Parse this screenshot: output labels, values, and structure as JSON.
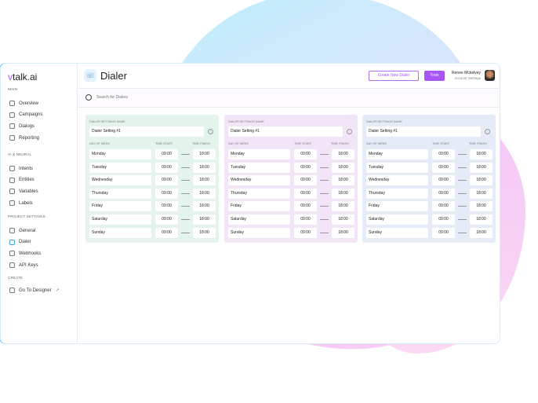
{
  "app": {
    "logo": "talk.ai",
    "logo_accent": "v"
  },
  "sidebar": {
    "sections": [
      {
        "title": "MAIN",
        "items": [
          {
            "label": "Overview",
            "icon": "chart-pie-icon"
          },
          {
            "label": "Campaigns",
            "icon": "folder-icon"
          },
          {
            "label": "Dialogs",
            "icon": "chat-icon"
          },
          {
            "label": "Reporting",
            "icon": "report-icon"
          }
        ]
      },
      {
        "title": "AI & NEURAL",
        "items": [
          {
            "label": "Intents",
            "icon": "intent-icon"
          },
          {
            "label": "Entities",
            "icon": "entity-icon"
          },
          {
            "label": "Variables",
            "icon": "grid-icon"
          },
          {
            "label": "Labels",
            "icon": "label-icon"
          }
        ]
      },
      {
        "title": "PROJECT SETTINGS",
        "items": [
          {
            "label": "General",
            "icon": "sliders-icon"
          },
          {
            "label": "Dialer",
            "icon": "phone-icon",
            "active": true
          },
          {
            "label": "Webhooks",
            "icon": "webhook-icon"
          },
          {
            "label": "API Keys",
            "icon": "key-icon"
          }
        ]
      },
      {
        "title": "CREATE",
        "items": [
          {
            "label": "Go To Designer",
            "icon": "share-icon",
            "external": "↗"
          }
        ]
      }
    ]
  },
  "header": {
    "title": "Dialer",
    "create_label": "Create New Dialer",
    "train_label": "Train",
    "user_name": "Renee Mckelvey",
    "user_sub": "Account Settings"
  },
  "search": {
    "placeholder": "Search for Dialers"
  },
  "colors": {
    "accent": "#a855f7",
    "card_bgs": [
      "#e4f4ec",
      "#f3e5f8",
      "#e6ebf8"
    ]
  },
  "cards": [
    {
      "label": "DIALER SETTINGS NAME",
      "name": "Dialer Setting #1",
      "col_day": "DAY OF WEEK",
      "col_start": "TIME START",
      "col_finish": "TIME FINISH",
      "rows": [
        {
          "day": "Monday",
          "start": "09:00",
          "finish": "18:00"
        },
        {
          "day": "Tuesday",
          "start": "09:00",
          "finish": "18:00"
        },
        {
          "day": "Wednesday",
          "start": "09:00",
          "finish": "18:00"
        },
        {
          "day": "Thursday",
          "start": "09:00",
          "finish": "18:00"
        },
        {
          "day": "Friday",
          "start": "09:00",
          "finish": "18:00"
        },
        {
          "day": "Saturday",
          "start": "09:00",
          "finish": "18:00"
        },
        {
          "day": "Sunday",
          "start": "09:00",
          "finish": "18:00"
        }
      ]
    },
    {
      "label": "DIALER SETTINGS NAME",
      "name": "Dialer Setting #1",
      "col_day": "DAY OF WEEK",
      "col_start": "TIME START",
      "col_finish": "TIME FINISH",
      "rows": [
        {
          "day": "Monday",
          "start": "09:00",
          "finish": "18:00"
        },
        {
          "day": "Tuesday",
          "start": "09:00",
          "finish": "18:00"
        },
        {
          "day": "Wednesday",
          "start": "09:00",
          "finish": "18:00"
        },
        {
          "day": "Thursday",
          "start": "09:00",
          "finish": "18:00"
        },
        {
          "day": "Friday",
          "start": "09:00",
          "finish": "18:00"
        },
        {
          "day": "Saturday",
          "start": "09:00",
          "finish": "18:00"
        },
        {
          "day": "Sunday",
          "start": "09:00",
          "finish": "18:00"
        }
      ]
    },
    {
      "label": "DIALER SETTINGS NAME",
      "name": "Dialer Setting #1",
      "col_day": "DAY OF WEEK",
      "col_start": "TIME START",
      "col_finish": "TIME FINISH",
      "rows": [
        {
          "day": "Monday",
          "start": "09:00",
          "finish": "18:00"
        },
        {
          "day": "Tuesday",
          "start": "09:00",
          "finish": "18:00"
        },
        {
          "day": "Wednesday",
          "start": "09:00",
          "finish": "18:00"
        },
        {
          "day": "Thursday",
          "start": "09:00",
          "finish": "18:00"
        },
        {
          "day": "Friday",
          "start": "09:00",
          "finish": "18:00"
        },
        {
          "day": "Saturday",
          "start": "09:00",
          "finish": "18:00"
        },
        {
          "day": "Sunday",
          "start": "09:00",
          "finish": "18:00"
        }
      ]
    }
  ]
}
